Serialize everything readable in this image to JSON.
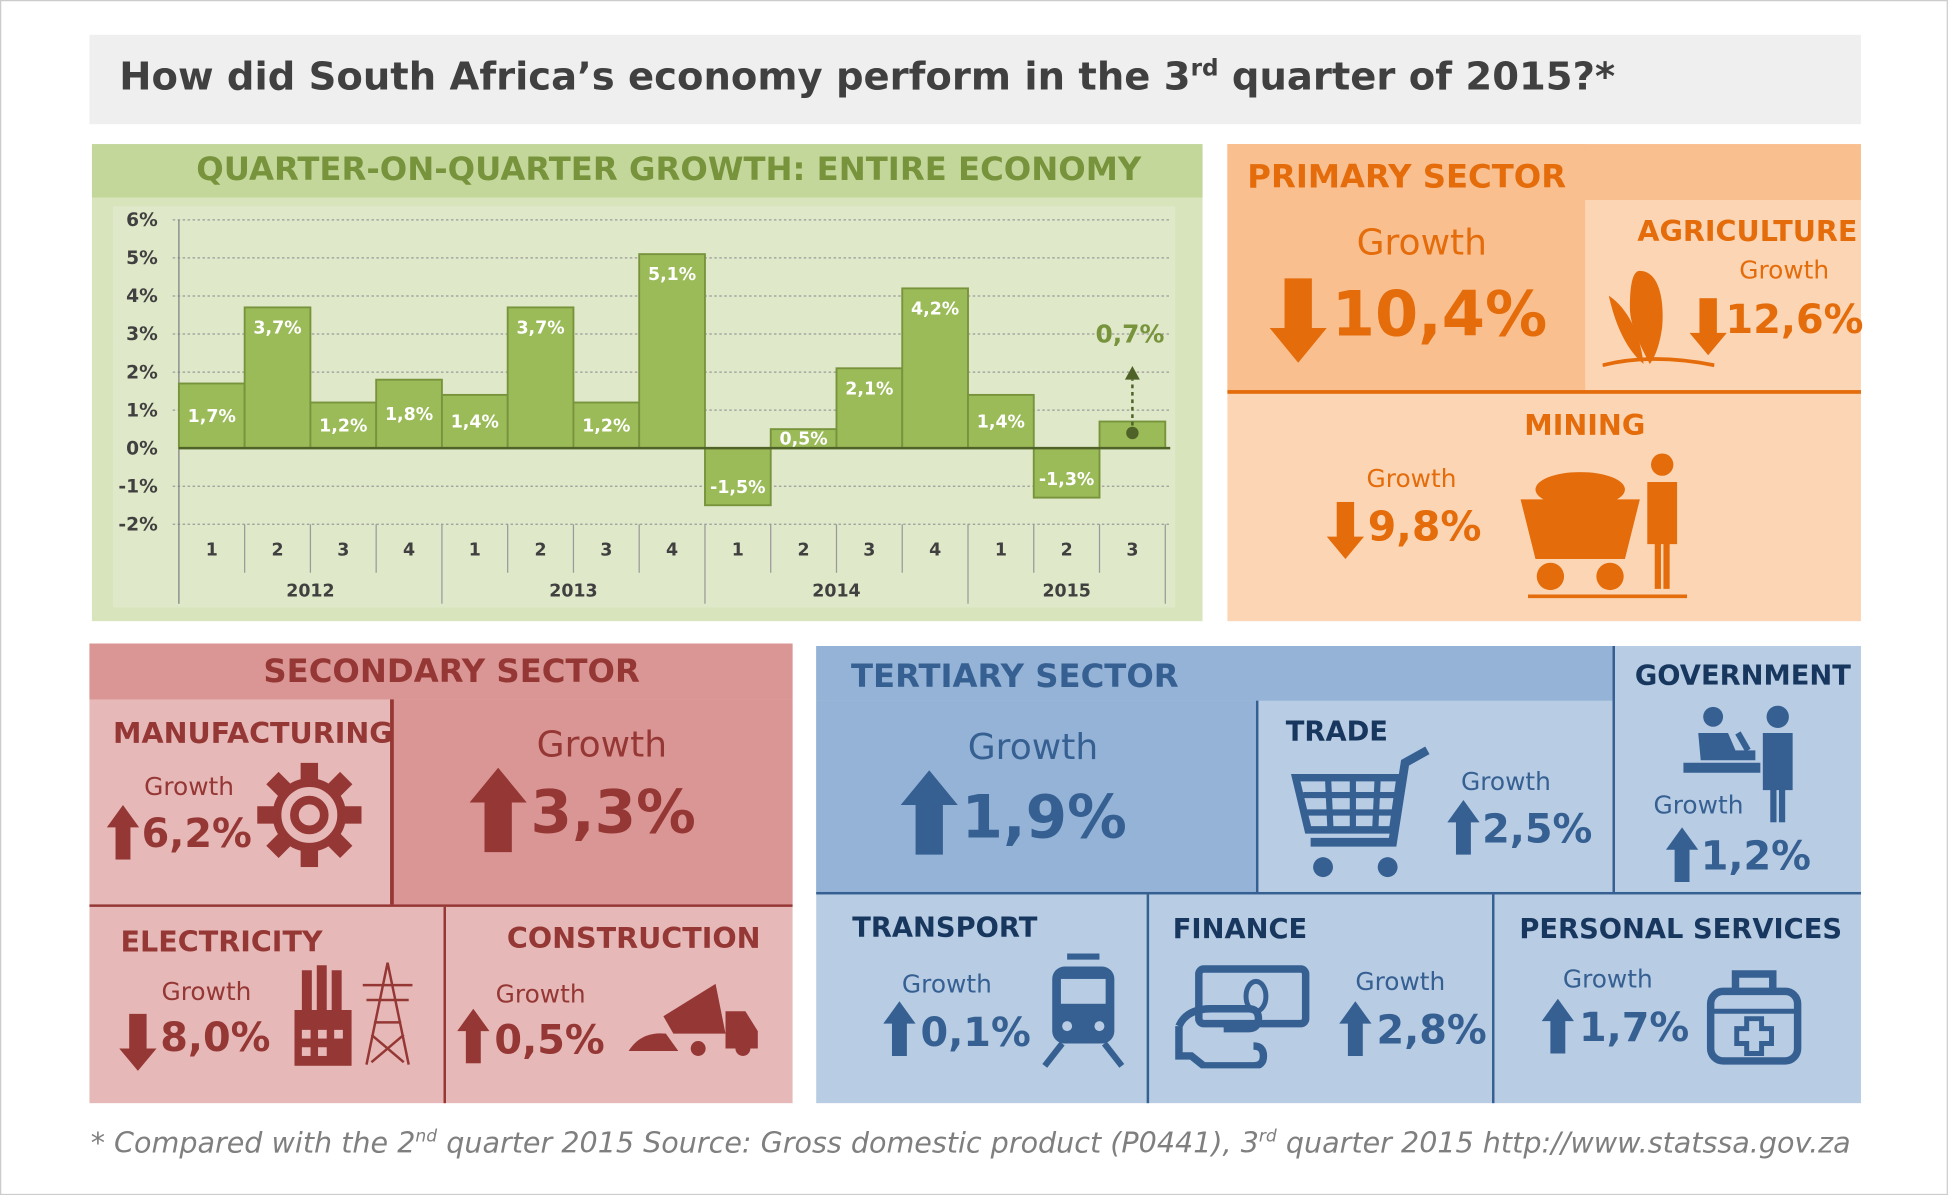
{
  "title": {
    "pre": "How did South Africa’s economy perform in the 3",
    "sup": "rd",
    "post": " quarter of 2015?*"
  },
  "colors": {
    "green": "#9bbb59",
    "green_dark": "#77933c",
    "orange": "#e46c0a",
    "red": "#953735",
    "blue": "#366092"
  },
  "chart_data": {
    "type": "bar",
    "title": "QUARTER-ON-QUARTER GROWTH: ENTIRE ECONOMY",
    "categories": [
      "1",
      "2",
      "3",
      "4",
      "1",
      "2",
      "3",
      "4",
      "1",
      "2",
      "3",
      "4",
      "1",
      "2",
      "3"
    ],
    "groups": [
      {
        "label": "2012",
        "count": 4
      },
      {
        "label": "2013",
        "count": 4
      },
      {
        "label": "2014",
        "count": 4
      },
      {
        "label": "2015",
        "count": 3
      }
    ],
    "values": [
      1.7,
      3.7,
      1.2,
      1.8,
      1.4,
      3.7,
      1.2,
      5.1,
      -1.5,
      0.5,
      2.1,
      4.2,
      1.4,
      -1.3,
      0.7
    ],
    "labels": [
      "1,7%",
      "3,7%",
      "1,2%",
      "1,8%",
      "1,4%",
      "3,7%",
      "1,2%",
      "5,1%",
      "-1,5%",
      "0,5%",
      "2,1%",
      "4,2%",
      "1,4%",
      "-1,3%",
      "0,7%"
    ],
    "yticks": [
      "6%",
      "5%",
      "4%",
      "3%",
      "2%",
      "1%",
      "0%",
      "-1%",
      "-2%"
    ],
    "ylim": [
      -2,
      6
    ],
    "grid": true,
    "highlight_index": 14
  },
  "primary": {
    "title": "PRIMARY SECTOR",
    "growth_label": "Growth",
    "growth": "10,4%",
    "direction": "down",
    "agriculture": {
      "title": "AGRICULTURE",
      "growth_label": "Growth",
      "growth": "12,6%",
      "direction": "down"
    },
    "mining": {
      "title": "MINING",
      "growth_label": "Growth",
      "growth": "9,8%",
      "direction": "down"
    }
  },
  "secondary": {
    "title": "SECONDARY SECTOR",
    "growth_label": "Growth",
    "growth": "3,3%",
    "direction": "up",
    "manufacturing": {
      "title": "MANUFACTURING",
      "growth_label": "Growth",
      "growth": "6,2%",
      "direction": "up"
    },
    "electricity": {
      "title": "ELECTRICITY",
      "growth_label": "Growth",
      "growth": "8,0%",
      "direction": "down"
    },
    "construction": {
      "title": "CONSTRUCTION",
      "growth_label": "Growth",
      "growth": "0,5%",
      "direction": "up"
    }
  },
  "tertiary": {
    "title": "TERTIARY SECTOR",
    "growth_label": "Growth",
    "growth": "1,9%",
    "direction": "up",
    "trade": {
      "title": "TRADE",
      "growth_label": "Growth",
      "growth": "2,5%",
      "direction": "up"
    },
    "government": {
      "title": "GOVERNMENT",
      "growth_label": "Growth",
      "growth": "1,2%",
      "direction": "up"
    },
    "transport": {
      "title": "TRANSPORT",
      "growth_label": "Growth",
      "growth": "0,1%",
      "direction": "up"
    },
    "finance": {
      "title": "FINANCE",
      "growth_label": "Growth",
      "growth": "2,8%",
      "direction": "up"
    },
    "personal": {
      "title": "PERSONAL SERVICES",
      "growth_label": "Growth",
      "growth": "1,7%",
      "direction": "up"
    }
  },
  "footer": {
    "a": "* Compared with the 2",
    "a_sup": "nd",
    "b": " quarter 2015   Source: Gross domestic product (P0441), 3",
    "b_sup": "rd",
    "c": " quarter 2015    http://www.statssa.gov.za"
  }
}
